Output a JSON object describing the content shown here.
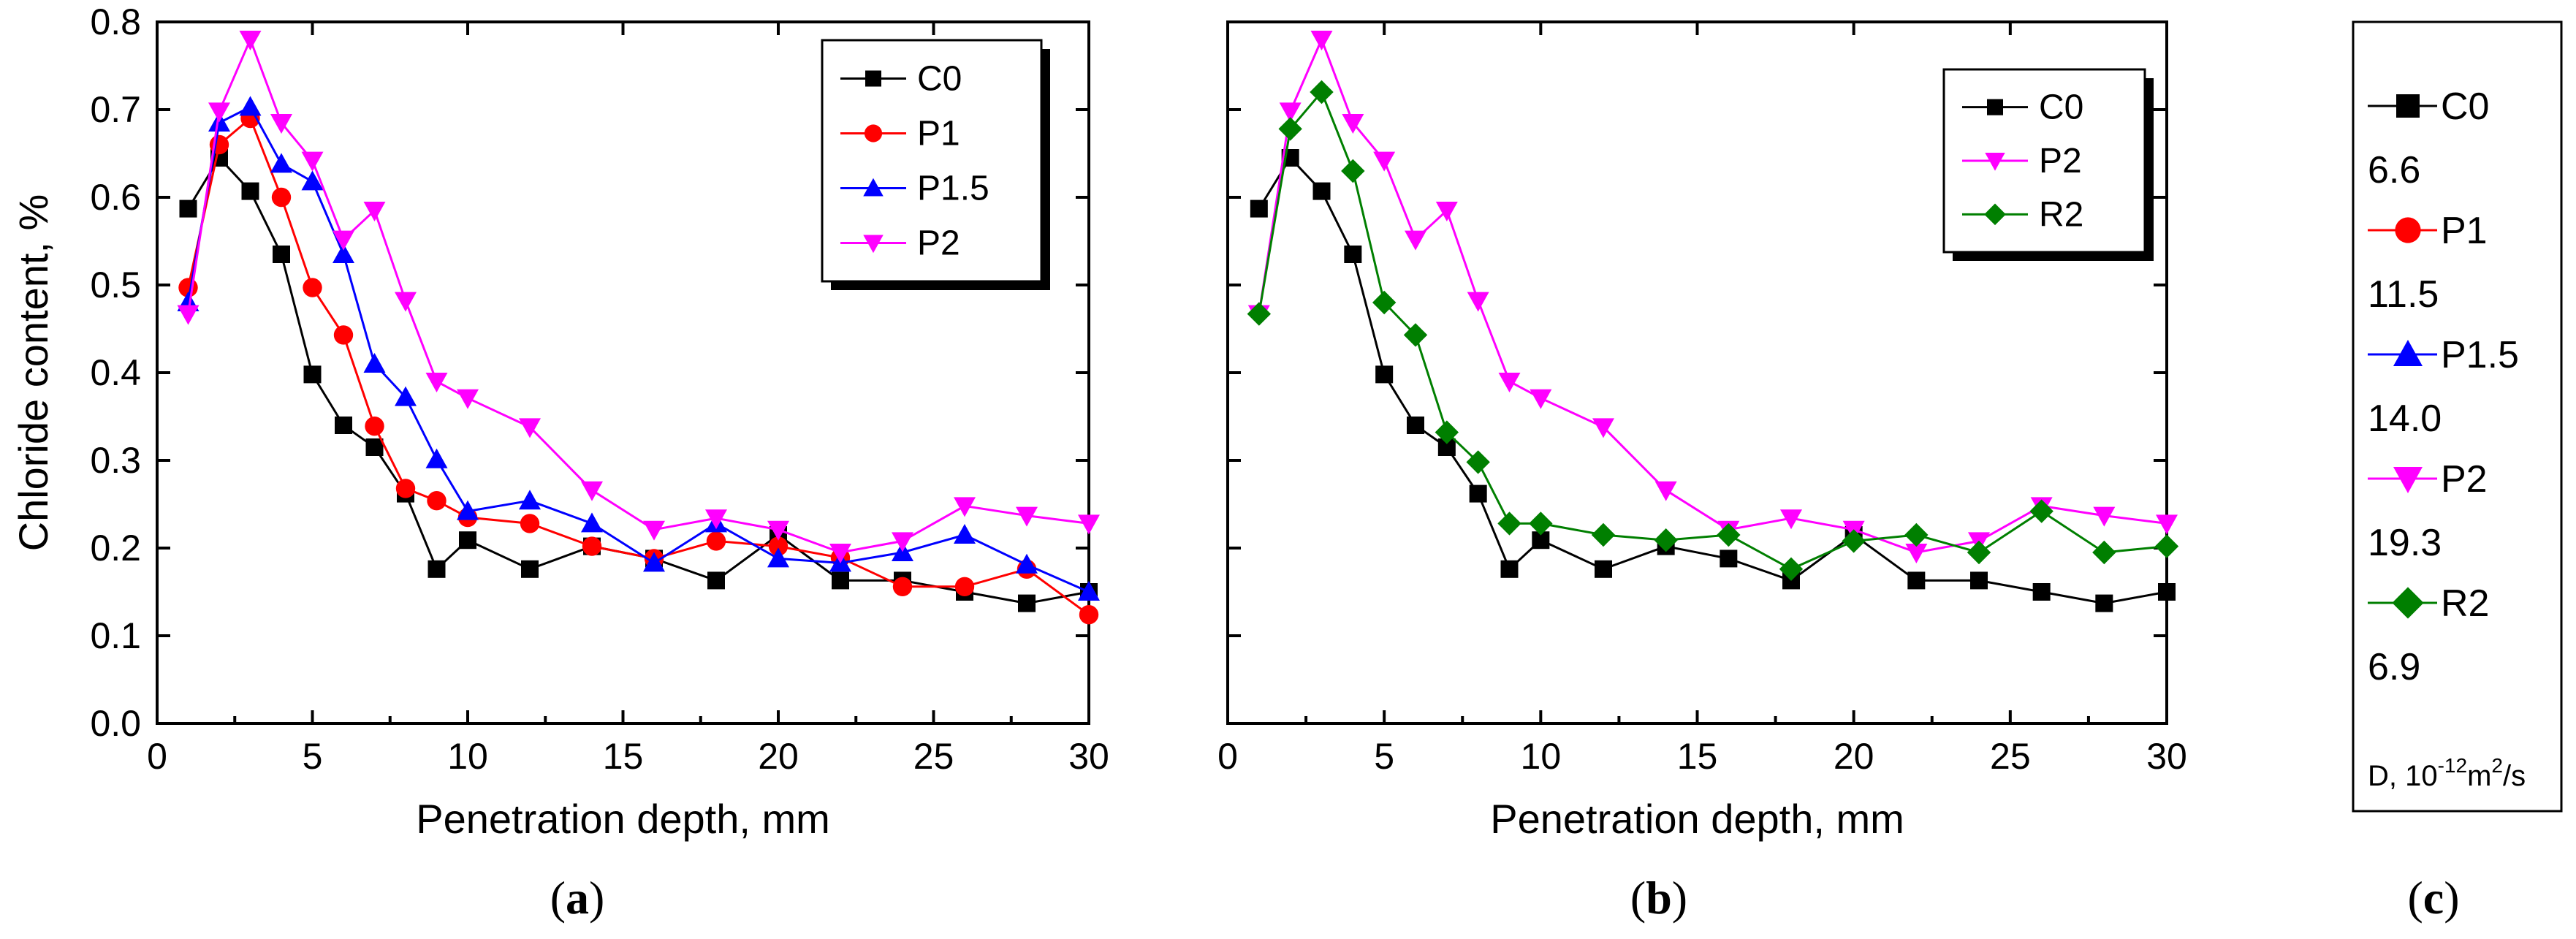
{
  "series_colors": {
    "C0": "#000000",
    "P1": "#ff0000",
    "P1.5": "#0000ff",
    "P2": "#ff00ff",
    "R2": "#007f00"
  },
  "chart_data": [
    {
      "id": "a",
      "type": "line",
      "caption_letter": "a",
      "xlabel": "Penetration depth, mm",
      "ylabel": "Chloride content, %",
      "xlim": [
        0,
        30
      ],
      "ylim": [
        0,
        0.8
      ],
      "xticks": [
        0,
        5,
        10,
        15,
        20,
        25,
        30
      ],
      "yticks": [
        0.0,
        0.1,
        0.2,
        0.3,
        0.4,
        0.5,
        0.6,
        0.7,
        0.8
      ],
      "ytick_labels": [
        "0.0",
        "0.1",
        "0.2",
        "0.3",
        "0.4",
        "0.5",
        "0.6",
        "0.7",
        "0.8"
      ],
      "show_ytick_labels": true,
      "legend_position": "top-right",
      "x": [
        1,
        2,
        3,
        4,
        5,
        6,
        7,
        8,
        9,
        10,
        12,
        14,
        16,
        18,
        20,
        22,
        24,
        26,
        28,
        30
      ],
      "series": [
        {
          "name": "C0",
          "marker": "square",
          "values": [
            0.587,
            0.645,
            0.607,
            0.535,
            0.398,
            0.34,
            0.315,
            0.262,
            0.176,
            0.209,
            0.176,
            0.202,
            0.188,
            0.163,
            0.215,
            0.163,
            0.163,
            0.15,
            0.137,
            0.15
          ]
        },
        {
          "name": "P1",
          "marker": "circle",
          "values": [
            0.497,
            0.66,
            0.69,
            0.6,
            0.497,
            0.443,
            0.339,
            0.268,
            0.254,
            0.235,
            0.228,
            0.202,
            0.188,
            0.208,
            0.202,
            0.189,
            0.156,
            0.156,
            0.176,
            0.124
          ]
        },
        {
          "name": "P1.5",
          "marker": "triangle-up",
          "values": [
            0.48,
            0.685,
            0.703,
            0.638,
            0.618,
            0.535,
            0.41,
            0.372,
            0.301,
            0.242,
            0.254,
            0.228,
            0.183,
            0.228,
            0.188,
            0.183,
            0.195,
            0.215,
            0.181,
            0.15
          ]
        },
        {
          "name": "P2",
          "marker": "triangle-down",
          "values": [
            0.467,
            0.698,
            0.78,
            0.685,
            0.642,
            0.552,
            0.585,
            0.482,
            0.39,
            0.371,
            0.338,
            0.266,
            0.221,
            0.234,
            0.221,
            0.195,
            0.208,
            0.248,
            0.237,
            0.228
          ]
        }
      ]
    },
    {
      "id": "b",
      "type": "line",
      "caption_letter": "b",
      "xlabel": "Penetration depth, mm",
      "ylabel": "",
      "xlim": [
        0,
        30
      ],
      "ylim": [
        0,
        0.8
      ],
      "xticks": [
        0,
        5,
        10,
        15,
        20,
        25,
        30
      ],
      "yticks": [
        0.0,
        0.1,
        0.2,
        0.3,
        0.4,
        0.5,
        0.6,
        0.7,
        0.8
      ],
      "ytick_labels": [],
      "show_ytick_labels": false,
      "legend_position": "top-right",
      "x": [
        1,
        2,
        3,
        4,
        5,
        6,
        7,
        8,
        9,
        10,
        12,
        14,
        16,
        18,
        20,
        22,
        24,
        26,
        28,
        30
      ],
      "series": [
        {
          "name": "C0",
          "marker": "square",
          "values": [
            0.587,
            0.645,
            0.607,
            0.535,
            0.398,
            0.34,
            0.315,
            0.262,
            0.176,
            0.209,
            0.176,
            0.202,
            0.188,
            0.163,
            0.215,
            0.163,
            0.163,
            0.15,
            0.137,
            0.15
          ]
        },
        {
          "name": "P2",
          "marker": "triangle-down",
          "values": [
            0.467,
            0.698,
            0.78,
            0.685,
            0.642,
            0.552,
            0.585,
            0.482,
            0.39,
            0.371,
            0.338,
            0.266,
            0.221,
            0.234,
            0.221,
            0.195,
            0.208,
            0.248,
            0.237,
            0.228
          ]
        },
        {
          "name": "R2",
          "marker": "diamond",
          "values": [
            0.467,
            0.678,
            0.72,
            0.63,
            0.48,
            0.443,
            0.332,
            0.298,
            0.228,
            0.228,
            0.215,
            0.209,
            0.215,
            0.176,
            0.208,
            0.215,
            0.195,
            0.242,
            0.195,
            0.202
          ]
        }
      ]
    }
  ],
  "panel_c": {
    "caption_letter": "c",
    "unit_label": "D, 10",
    "unit_exp1": "-12",
    "unit_mid": "m",
    "unit_exp2": "2",
    "unit_end": "/s",
    "entries": [
      {
        "name": "C0",
        "value": "6.6",
        "marker": "square"
      },
      {
        "name": "P1",
        "value": "11.5",
        "marker": "circle"
      },
      {
        "name": "P1.5",
        "value": "14.0",
        "marker": "triangle-up"
      },
      {
        "name": "P2",
        "value": "19.3",
        "marker": "triangle-down"
      },
      {
        "name": "R2",
        "value": "6.9",
        "marker": "diamond"
      }
    ]
  }
}
